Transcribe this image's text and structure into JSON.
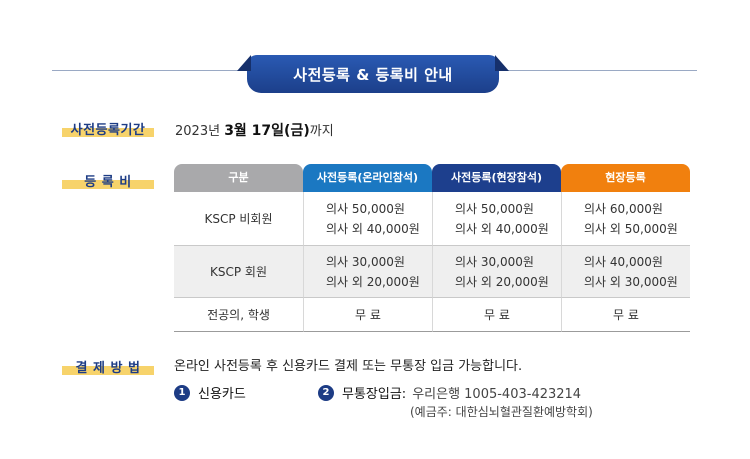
{
  "banner": {
    "title": "사전등록 & 등록비 안내"
  },
  "period": {
    "label": "사전등록기간",
    "date_prefix": "2023년 ",
    "date_bold": "3월 17일(금)",
    "date_suffix": "까지"
  },
  "fee": {
    "label": "등 록 비",
    "headers": [
      "구분",
      "사전등록(온라인참석)",
      "사전등록(현장참석)",
      "현장등록"
    ],
    "rows": [
      {
        "category": "KSCP 비회원",
        "cells": [
          [
            "의사 50,000원",
            "의사 외 40,000원"
          ],
          [
            "의사 50,000원",
            "의사 외 40,000원"
          ],
          [
            "의사 60,000원",
            "의사 외 50,000원"
          ]
        ]
      },
      {
        "category": "KSCP 회원",
        "cells": [
          [
            "의사 30,000원",
            "의사 외 20,000원"
          ],
          [
            "의사 30,000원",
            "의사 외 20,000원"
          ],
          [
            "의사 40,000원",
            "의사 외 30,000원"
          ]
        ]
      },
      {
        "category": "전공의, 학생",
        "cells": [
          [
            "무 료"
          ],
          [
            "무 료"
          ],
          [
            "무 료"
          ]
        ]
      }
    ]
  },
  "payment": {
    "label": "결 제 방 법",
    "description": "온라인 사전등록 후 신용카드 결제 또는 무통장 입금 가능합니다.",
    "option1": {
      "number": "1",
      "text": "신용카드"
    },
    "option2": {
      "number": "2",
      "title": "무통장입금:",
      "account": "우리은행 1005-403-423214",
      "holder": "(예금주: 대한심뇌혈관질환예방학회)"
    }
  }
}
